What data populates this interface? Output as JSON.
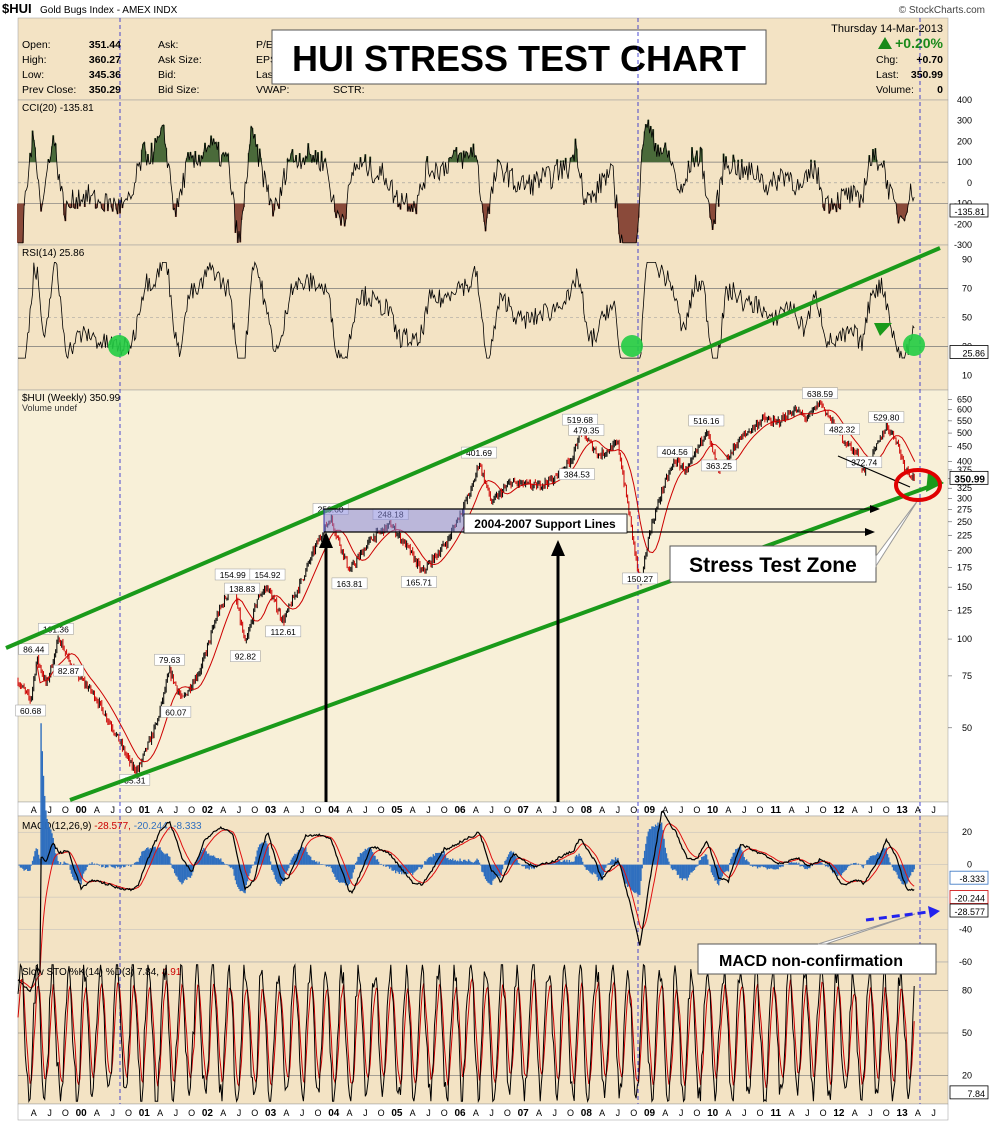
{
  "header": {
    "symbol": "$HUI",
    "name": "Gold Bugs Index - AMEX INDX",
    "date": "Thursday  14-Mar-2013",
    "source": "© StockCharts.com",
    "change_pct": "+0.20%",
    "labels": {
      "open": "Open:",
      "high": "High:",
      "low": "Low:",
      "prev": "Prev Close:",
      "ask": "Ask:",
      "asksize": "Ask Size:",
      "bid": "Bid:",
      "bidsize": "Bid Size:",
      "pe": "P/E:",
      "eps": "EPS:",
      "last": "Last",
      "vwap": "VWAP:",
      "sctr": "SCTR:",
      "chg": "Chg:",
      "last2": "Last:",
      "volume": "Volume:"
    },
    "values": {
      "open": "351.44",
      "high": "360.27",
      "low": "345.36",
      "prev": "350.29",
      "chg": "+0.70",
      "last": "350.99",
      "volume": "0"
    }
  },
  "title_box": "HUI STRESS TEST CHART",
  "colors": {
    "panel_bg": "#f3e3c4",
    "price_panel_bg": "#f8f0d8",
    "channel": "#1a9a1a",
    "price_up": "#000000",
    "price_down": "#cc0000",
    "cci_fill_pos": "#4a6a3a",
    "cci_fill_neg": "#8a4a3a",
    "rsi_circle": "#22cc44",
    "macd_hist": "#2f6fbf",
    "macd_signal": "#e01010",
    "ma_red": "#cc0000",
    "stress_circle": "#e00000",
    "divider": "#2020cc"
  },
  "annotations": {
    "support": "2004-2007 Support Lines",
    "stress": "Stress Test Zone",
    "macd": "MACD non-confirmation"
  },
  "chart_data": [
    {
      "type": "line",
      "name": "CCI",
      "legend": "CCI(20) -135.81",
      "last_value": "-135.81",
      "ylim": [
        -300,
        400
      ],
      "yticks": [
        400,
        300,
        200,
        100,
        0,
        -100,
        -200,
        -300
      ]
    },
    {
      "type": "line",
      "name": "RSI",
      "legend": "RSI(14) 25.86",
      "last_value": "25.86",
      "ylim": [
        0,
        100
      ],
      "yticks": [
        90,
        70,
        50,
        30,
        10
      ]
    },
    {
      "type": "line",
      "name": "$HUI Weekly",
      "legend": "$HUI (Weekly) 350.99",
      "sublegend": "Volume undef",
      "last_value": "350.99",
      "y_scale": "log",
      "yticks": [
        650,
        600,
        550,
        500,
        450,
        400,
        375,
        350,
        325,
        300,
        275,
        250,
        225,
        200,
        175,
        150,
        125,
        100,
        75,
        50
      ],
      "x_labels": [
        "A",
        "J",
        "O",
        "00",
        "A",
        "J",
        "O",
        "01",
        "A",
        "J",
        "O",
        "02",
        "A",
        "J",
        "O",
        "03",
        "A",
        "J",
        "O",
        "04",
        "A",
        "J",
        "O",
        "05",
        "A",
        "J",
        "O",
        "06",
        "A",
        "J",
        "O",
        "07",
        "A",
        "J",
        "O",
        "08",
        "A",
        "J",
        "O",
        "09",
        "A",
        "J",
        "O",
        "10",
        "A",
        "J",
        "O",
        "11",
        "A",
        "J",
        "O",
        "12",
        "A",
        "J",
        "O",
        "13",
        "A",
        "J"
      ],
      "points": [
        {
          "x": 1999.25,
          "y": 86.44,
          "label": "86.44"
        },
        {
          "x": 1999.2,
          "y": 60.68,
          "label": "60.68"
        },
        {
          "x": 1999.6,
          "y": 101.36,
          "label": "101.36"
        },
        {
          "x": 1999.8,
          "y": 82.87,
          "label": "82.87"
        },
        {
          "x": 2000.85,
          "y": 35.31,
          "label": "35.31"
        },
        {
          "x": 2001.4,
          "y": 79.63,
          "label": "79.63"
        },
        {
          "x": 2001.5,
          "y": 60.07,
          "label": "60.07"
        },
        {
          "x": 2002.4,
          "y": 154.99,
          "label": "154.99"
        },
        {
          "x": 2002.55,
          "y": 138.83,
          "label": "138.83"
        },
        {
          "x": 2002.6,
          "y": 92.82,
          "label": "92.82"
        },
        {
          "x": 2002.95,
          "y": 154.92,
          "label": "154.92"
        },
        {
          "x": 2003.2,
          "y": 112.61,
          "label": "112.61"
        },
        {
          "x": 2003.95,
          "y": 258.6,
          "label": "258.60"
        },
        {
          "x": 2004.25,
          "y": 163.81,
          "label": "163.81"
        },
        {
          "x": 2004.9,
          "y": 248.18,
          "label": "248.18"
        },
        {
          "x": 2005.35,
          "y": 165.71,
          "label": "165.71"
        },
        {
          "x": 2006.3,
          "y": 401.69,
          "label": "401.69"
        },
        {
          "x": 2007.9,
          "y": 519.68,
          "label": "519.68"
        },
        {
          "x": 2008.0,
          "y": 479.35,
          "label": "479.35"
        },
        {
          "x": 2007.85,
          "y": 384.53,
          "label": "384.53"
        },
        {
          "x": 2008.85,
          "y": 150.27,
          "label": "150.27"
        },
        {
          "x": 2009.4,
          "y": 404.56,
          "label": "404.56"
        },
        {
          "x": 2009.9,
          "y": 516.16,
          "label": "516.16"
        },
        {
          "x": 2010.1,
          "y": 363.25,
          "label": "363.25"
        },
        {
          "x": 2011.7,
          "y": 638.59,
          "label": "638.59"
        },
        {
          "x": 2012.05,
          "y": 482.32,
          "label": "482.32"
        },
        {
          "x": 2012.4,
          "y": 372.74,
          "label": "372.74"
        },
        {
          "x": 2012.75,
          "y": 529.8,
          "label": "529.80"
        }
      ]
    },
    {
      "type": "line",
      "name": "MACD",
      "legend": "MACD(12,26,9) -28.577, -20.244, -8.333",
      "legend_parts": [
        "MACD(12,26,9)",
        "-28.577,",
        "-20.244,",
        "-8.333"
      ],
      "last_values": [
        "-8.333",
        "-20.244",
        "-28.577"
      ],
      "ylim": [
        -60,
        30
      ],
      "yticks": [
        20,
        0,
        -20,
        -40,
        -60
      ]
    },
    {
      "type": "line",
      "name": "Slow STO",
      "legend": "Slow STO %K(14) %D(3) 7.84, 4.91",
      "legend_parts": [
        "Slow STO %K(14) %D(3) 7.84,",
        "4.91"
      ],
      "last_value": "7.84",
      "ylim": [
        0,
        100
      ],
      "yticks": [
        80,
        50,
        20
      ]
    }
  ]
}
